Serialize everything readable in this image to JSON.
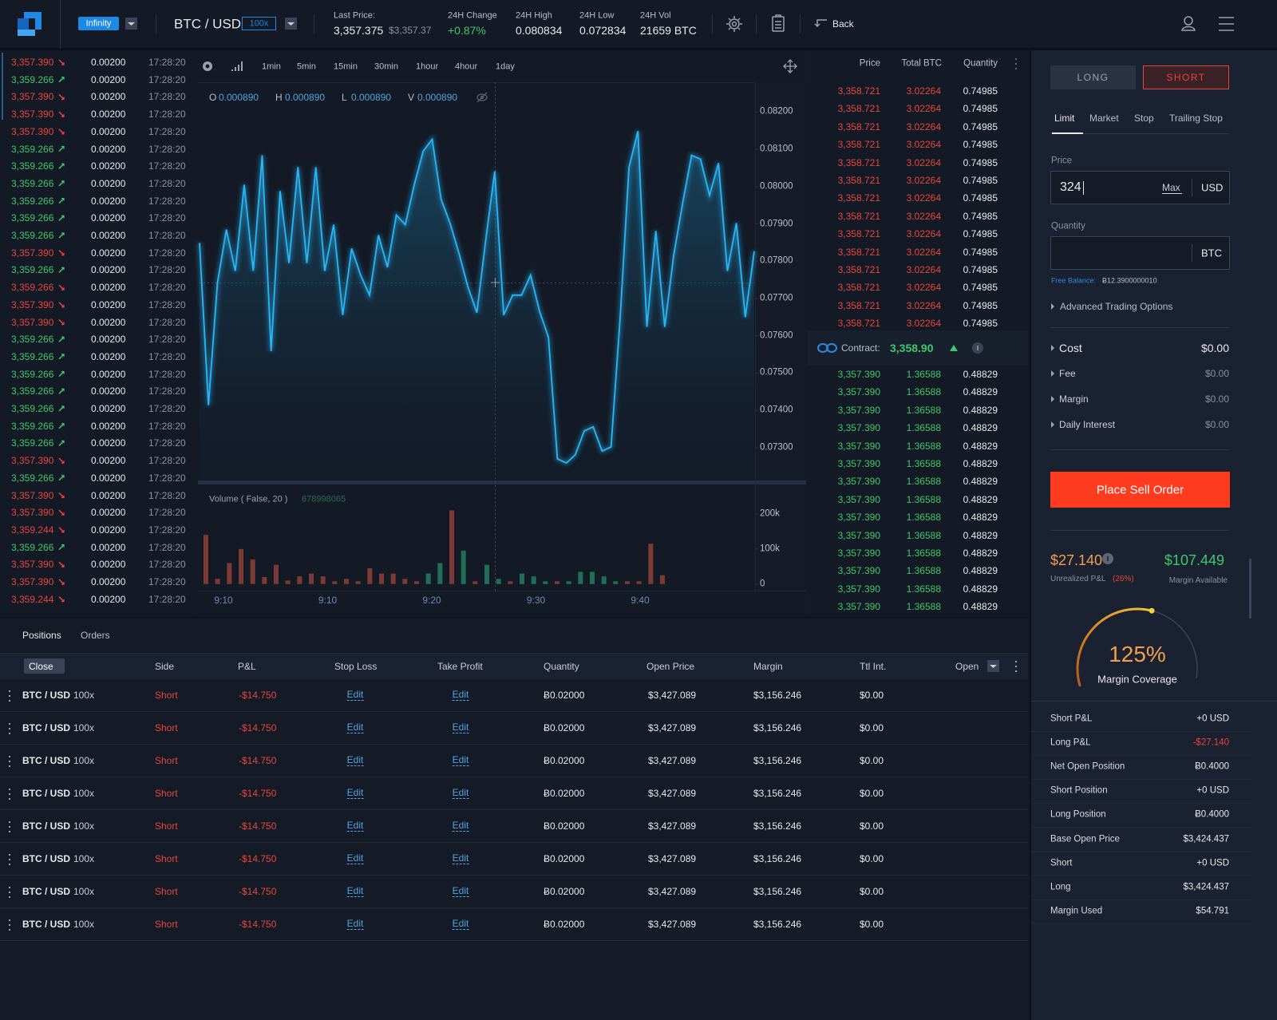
{
  "header": {
    "mode": "Infinity",
    "pair": "BTC / USD",
    "leverage": "100x",
    "last_price_label": "Last Price:",
    "last_price": "3,357.375",
    "last_price_usd": "$3,357.37",
    "stats": [
      {
        "label": "24H Change",
        "value": "+0.87%"
      },
      {
        "label": "24H High",
        "value": "0.080834"
      },
      {
        "label": "24H Low",
        "value": "0.072834"
      },
      {
        "label": "24H Vol",
        "value": "21659 BTC"
      }
    ],
    "back": "Back"
  },
  "trades": {
    "trend_colors": {
      "down": "#e8453c",
      "up": "#3fc86b"
    },
    "trend": [
      "down",
      "up",
      "down",
      "down",
      "down",
      "up",
      "up",
      "up",
      "up",
      "up",
      "up",
      "down",
      "up",
      "down",
      "down",
      "down",
      "up",
      "up",
      "up",
      "up",
      "up",
      "up",
      "up",
      "down",
      "up",
      "down",
      "down",
      "down",
      "up",
      "down",
      "down",
      "down"
    ],
    "rows": [
      [
        "3,357.390",
        "0.00200",
        "17:28:20"
      ],
      [
        "3,359.266",
        "0.00200",
        "17:28:20"
      ],
      [
        "3,357.390",
        "0.00200",
        "17:28:20"
      ],
      [
        "3,357.390",
        "0.00200",
        "17:28:20"
      ],
      [
        "3,357.390",
        "0.00200",
        "17:28:20"
      ],
      [
        "3,359.266",
        "0.00200",
        "17:28:20"
      ],
      [
        "3,359.266",
        "0.00200",
        "17:28:20"
      ],
      [
        "3,359.266",
        "0.00200",
        "17:28:20"
      ],
      [
        "3,359.266",
        "0.00200",
        "17:28:20"
      ],
      [
        "3,359.266",
        "0.00200",
        "17:28:20"
      ],
      [
        "3,359.266",
        "0.00200",
        "17:28:20"
      ],
      [
        "3,357.390",
        "0.00200",
        "17:28:20"
      ],
      [
        "3,359.266",
        "0.00200",
        "17:28:20"
      ],
      [
        "3,359.266",
        "0.00200",
        "17:28:20"
      ],
      [
        "3,357.390",
        "0.00200",
        "17:28:20"
      ],
      [
        "3,357.390",
        "0.00200",
        "17:28:20"
      ],
      [
        "3,359.266",
        "0.00200",
        "17:28:20"
      ],
      [
        "3,359.266",
        "0.00200",
        "17:28:20"
      ],
      [
        "3,359.266",
        "0.00200",
        "17:28:20"
      ],
      [
        "3,359.266",
        "0.00200",
        "17:28:20"
      ],
      [
        "3,359.266",
        "0.00200",
        "17:28:20"
      ],
      [
        "3,359.266",
        "0.00200",
        "17:28:20"
      ],
      [
        "3,359.266",
        "0.00200",
        "17:28:20"
      ],
      [
        "3,357.390",
        "0.00200",
        "17:28:20"
      ],
      [
        "3,359.266",
        "0.00200",
        "17:28:20"
      ],
      [
        "3,357.390",
        "0.00200",
        "17:28:20"
      ],
      [
        "3,357.390",
        "0.00200",
        "17:28:20"
      ],
      [
        "3,359.244",
        "0.00200",
        "17:28:20"
      ],
      [
        "3,359.266",
        "0.00200",
        "17:28:20"
      ],
      [
        "3,357.390",
        "0.00200",
        "17:28:20"
      ],
      [
        "3,357.390",
        "0.00200",
        "17:28:20"
      ],
      [
        "3,359.244",
        "0.00200",
        "17:28:20"
      ]
    ]
  },
  "toolbar": {
    "intervals": [
      "1min",
      "5min",
      "15min",
      "30min",
      "1hour",
      "4hour",
      "1day"
    ],
    "ohlc": [
      {
        "key": "O",
        "value": "0.000890"
      },
      {
        "key": "H",
        "value": "0.000890"
      },
      {
        "key": "L",
        "value": "0.000890"
      },
      {
        "key": "V",
        "value": "0.000890"
      }
    ]
  },
  "chart_data": [
    {
      "type": "line",
      "color": "#29b6f6",
      "values": [
        0.07849,
        0.07414,
        0.07741,
        0.07885,
        0.07774,
        0.08005,
        0.07774,
        0.08084,
        0.07559,
        0.07988,
        0.07795,
        0.08052,
        0.07795,
        0.08052,
        0.07774,
        0.07898,
        0.07656,
        0.07834,
        0.07763,
        0.07709,
        0.0787,
        0.07784,
        0.07924,
        0.07898,
        0.08005,
        0.08095,
        0.08127,
        0.07966,
        0.07902,
        0.07821,
        0.07731,
        0.07662,
        0.07859,
        0.08041,
        0.07656,
        0.07709,
        0.07709,
        0.07763,
        0.07666,
        0.07596,
        0.0727,
        0.07259,
        0.07281,
        0.07345,
        0.07356,
        0.07291,
        0.07302,
        0.07645,
        0.08052,
        0.08149,
        0.07624,
        0.07881,
        0.07624,
        0.07816,
        0.07956,
        0.08084,
        0.08074,
        0.07977,
        0.08063,
        0.07774,
        0.07902,
        0.0765,
        0.07827
      ],
      "ylim": [
        0.0721,
        0.0828
      ],
      "yticks": [
        {
          "value": 0.082,
          "label": "0.08200"
        },
        {
          "value": 0.081,
          "label": "0.08100"
        },
        {
          "value": 0.08,
          "label": "0.08000"
        },
        {
          "value": 0.079,
          "label": "0.07900"
        },
        {
          "value": 0.078,
          "label": "0.07800"
        },
        {
          "value": 0.077,
          "label": "0.07700"
        },
        {
          "value": 0.076,
          "label": "0.07600"
        },
        {
          "value": 0.075,
          "label": "0.07500"
        },
        {
          "value": 0.074,
          "label": "0.07400"
        },
        {
          "value": 0.073,
          "label": "0.07300"
        }
      ]
    },
    {
      "type": "bar",
      "title": "Volume ( False, 20 )",
      "subtitle": "678998065",
      "values": [
        140000,
        15000,
        60000,
        100000,
        70000,
        20000,
        55000,
        10000,
        22000,
        30000,
        22000,
        8000,
        15000,
        8000,
        45000,
        30000,
        30000,
        15000,
        8000,
        30000,
        60000,
        210000,
        95000,
        8000,
        55000,
        15000,
        8000,
        30000,
        22000,
        8000,
        8000,
        8000,
        35000,
        35000,
        22000,
        8000,
        8000,
        8000,
        115000,
        25000
      ],
      "colors": [
        "#7d3a33",
        "#7d3a33",
        "#7d3a33",
        "#7d3a33",
        "#7d3a33",
        "#7d3a33",
        "#7d3a33",
        "#7d3a33",
        "#7d3a33",
        "#7d3a33",
        "#7d3a33",
        "#7d3a33",
        "#7d3a33",
        "#7d3a33",
        "#7d3a33",
        "#7d3a33",
        "#7d3a33",
        "#7d3a33",
        "#7d3a33",
        "#1f6e56",
        "#1f6e56",
        "#7d3a33",
        "#1f6e56",
        "#7d3a33",
        "#1f6e56",
        "#1f6e56",
        "#7d3a33",
        "#1f6e56",
        "#1f6e56",
        "#1f6e56",
        "#7d3a33",
        "#1f6e56",
        "#1f6e56",
        "#1f6e56",
        "#1f6e56",
        "#1f6e56",
        "#7d3a33",
        "#7d3a33",
        "#7d3a33",
        "#7d3a33"
      ],
      "ylim": [
        -18600,
        283700
      ],
      "yticks": [
        0,
        {
          "value": 100000,
          "label": "100k"
        },
        {
          "value": 200000,
          "label": "200k"
        }
      ],
      "xticks": [
        "9:10",
        "9:10",
        "9:20",
        "9:30",
        "9:40"
      ]
    }
  ],
  "order_book": {
    "headers": [
      "Price",
      "Total BTC",
      "Quantity"
    ],
    "asks": [
      [
        "3,358.721",
        "3.02264",
        "0.74985"
      ],
      [
        "3,358.721",
        "3.02264",
        "0.74985"
      ],
      [
        "3,358.721",
        "3.02264",
        "0.74985"
      ],
      [
        "3,358.721",
        "3.02264",
        "0.74985"
      ],
      [
        "3,358.721",
        "3.02264",
        "0.74985"
      ],
      [
        "3,358.721",
        "3.02264",
        "0.74985"
      ],
      [
        "3,358.721",
        "3.02264",
        "0.74985"
      ],
      [
        "3,358.721",
        "3.02264",
        "0.74985"
      ],
      [
        "3,358.721",
        "3.02264",
        "0.74985"
      ],
      [
        "3,358.721",
        "3.02264",
        "0.74985"
      ],
      [
        "3,358.721",
        "3.02264",
        "0.74985"
      ],
      [
        "3,358.721",
        "3.02264",
        "0.74985"
      ],
      [
        "3,358.721",
        "3.02264",
        "0.74985"
      ],
      [
        "3,358.721",
        "3.02264",
        "0.74985"
      ]
    ],
    "contract_label": "Contract:",
    "contract_price": "3,358.90",
    "bids": [
      [
        "3,357.390",
        "1.36588",
        "0.48829"
      ],
      [
        "3,357.390",
        "1.36588",
        "0.48829"
      ],
      [
        "3,357.390",
        "1.36588",
        "0.48829"
      ],
      [
        "3,357.390",
        "1.36588",
        "0.48829"
      ],
      [
        "3,357.390",
        "1.36588",
        "0.48829"
      ],
      [
        "3,357.390",
        "1.36588",
        "0.48829"
      ],
      [
        "3,357.390",
        "1.36588",
        "0.48829"
      ],
      [
        "3,357.390",
        "1.36588",
        "0.48829"
      ],
      [
        "3,357.390",
        "1.36588",
        "0.48829"
      ],
      [
        "3,357.390",
        "1.36588",
        "0.48829"
      ],
      [
        "3,357.390",
        "1.36588",
        "0.48829"
      ],
      [
        "3,357.390",
        "1.36588",
        "0.48829"
      ],
      [
        "3,357.390",
        "1.36588",
        "0.48829"
      ],
      [
        "3,357.390",
        "1.36588",
        "0.48829"
      ]
    ]
  },
  "order_form": {
    "sides": [
      "LONG",
      "SHORT"
    ],
    "tabs": [
      "Limit",
      "Market",
      "Stop",
      "Trailing Stop"
    ],
    "price_label": "Price",
    "price_value": "324",
    "max": "Max",
    "price_unit": "USD",
    "quantity_label": "Quantity",
    "quantity_unit": "BTC",
    "free_balance_label": "Free Balance:",
    "free_balance": "Ƀ12.3900000010",
    "advanced": "Advanced Trading Options",
    "costs": [
      [
        "Cost",
        "$0.00"
      ],
      [
        "Fee",
        "$0.00"
      ],
      [
        "Margin",
        "$0.00"
      ],
      [
        "Daily Interest",
        "$0.00"
      ]
    ],
    "submit": "Place Sell Order",
    "pnl": "$27.140",
    "pnl_label": "Unrealized P&L",
    "pnl_pct": "(26%)",
    "margin_available": "$107.449",
    "margin_available_label": "Margin Available",
    "coverage": "125%",
    "coverage_label": "Margin Coverage",
    "summary": [
      [
        "Short P&L",
        "+0 USD"
      ],
      [
        "Long P&L",
        "-$27.140"
      ],
      [
        "Net Open Position",
        "Ƀ0.4000"
      ],
      [
        "Short Position",
        "+0 USD"
      ],
      [
        "Long Position",
        "Ƀ0.4000"
      ],
      [
        "Base Open Price",
        "$3,424.437"
      ],
      [
        "Short",
        "+0 USD"
      ],
      [
        "Long",
        "$3,424.437"
      ],
      [
        "Margin Used",
        "$54.791"
      ]
    ]
  },
  "positions": {
    "tabs": [
      "Positions",
      "Orders"
    ],
    "columns": [
      "Close",
      "Side",
      "P&L",
      "Stop Loss",
      "Take Profit",
      "Quantity",
      "Open Price",
      "Margin",
      "Ttl Int.",
      "Open"
    ],
    "rows": [
      [
        "BTC / USD",
        "100x",
        "Short",
        "-$14.750",
        "Edit",
        "Edit",
        "Ƀ0.02000",
        "$3,427.089",
        "$3,156.246",
        "$0.00"
      ],
      [
        "BTC / USD",
        "100x",
        "Short",
        "-$14.750",
        "Edit",
        "Edit",
        "Ƀ0.02000",
        "$3,427.089",
        "$3,156.246",
        "$0.00"
      ],
      [
        "BTC / USD",
        "100x",
        "Short",
        "-$14.750",
        "Edit",
        "Edit",
        "Ƀ0.02000",
        "$3,427.089",
        "$3,156.246",
        "$0.00"
      ],
      [
        "BTC / USD",
        "100x",
        "Short",
        "-$14.750",
        "Edit",
        "Edit",
        "Ƀ0.02000",
        "$3,427.089",
        "$3,156.246",
        "$0.00"
      ],
      [
        "BTC / USD",
        "100x",
        "Short",
        "-$14.750",
        "Edit",
        "Edit",
        "Ƀ0.02000",
        "$3,427.089",
        "$3,156.246",
        "$0.00"
      ],
      [
        "BTC / USD",
        "100x",
        "Short",
        "-$14.750",
        "Edit",
        "Edit",
        "Ƀ0.02000",
        "$3,427.089",
        "$3,156.246",
        "$0.00"
      ],
      [
        "BTC / USD",
        "100x",
        "Short",
        "-$14.750",
        "Edit",
        "Edit",
        "Ƀ0.02000",
        "$3,427.089",
        "$3,156.246",
        "$0.00"
      ],
      [
        "BTC / USD",
        "100x",
        "Short",
        "-$14.750",
        "Edit",
        "Edit",
        "Ƀ0.02000",
        "$3,427.089",
        "$3,156.246",
        "$0.00"
      ]
    ]
  }
}
